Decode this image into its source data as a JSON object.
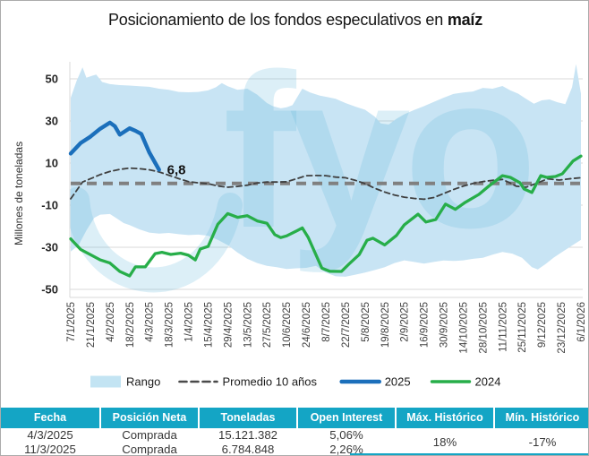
{
  "title": {
    "prefix": "Posicionamiento de los fondos especulativos en ",
    "bold": "maíz"
  },
  "watermark": {
    "text": "fyo",
    "color": "rgba(96,180,220,0.22)"
  },
  "chart_data": {
    "type": "line",
    "title": "Posicionamiento de los fondos especulativos en maíz",
    "ylabel": "Millones de toneladas",
    "ylim": [
      -50,
      50
    ],
    "yticks": [
      50,
      30,
      10,
      -10,
      -30,
      -50
    ],
    "grid": "horizontal",
    "legend_position": "bottom",
    "categories": [
      "7/1/2025",
      "21/1/2025",
      "4/2/2025",
      "18/2/2025",
      "4/3/2025",
      "18/3/2025",
      "1/4/2025",
      "15/4/2025",
      "29/4/2025",
      "13/5/2025",
      "27/5/2025",
      "10/6/2025",
      "24/6/2025",
      "8/7/2025",
      "22/7/2025",
      "5/8/2025",
      "19/8/2025",
      "2/9/2025",
      "16/9/2025",
      "30/9/2025",
      "14/10/2025",
      "28/10/2025",
      "11/11/2025",
      "25/11/2025",
      "9/12/2025",
      "23/12/2025",
      "6/1/2026"
    ],
    "annotation": {
      "text": "6,8",
      "tick": 4.5,
      "value": 6.8,
      "dx": 9,
      "dy": 5
    },
    "zero_line": {
      "value": 0.3,
      "color": "#808080"
    },
    "band": {
      "name": "Rango",
      "fill": "#C8E4F4",
      "upper": [
        [
          0,
          41
        ],
        [
          0.3,
          49
        ],
        [
          0.6,
          55.5
        ],
        [
          0.8,
          50.5
        ],
        [
          1.1,
          51.5
        ],
        [
          1.3,
          52
        ],
        [
          1.6,
          48.5
        ],
        [
          2,
          47.5
        ],
        [
          2.5,
          47
        ],
        [
          3,
          46.8
        ],
        [
          3.5,
          46.5
        ],
        [
          4,
          46.2
        ],
        [
          4.5,
          45.3
        ],
        [
          5,
          44.8
        ],
        [
          5.5,
          43.8
        ],
        [
          6,
          43.6
        ],
        [
          6.5,
          43.8
        ],
        [
          7,
          44.5
        ],
        [
          7.4,
          46
        ],
        [
          7.7,
          48
        ],
        [
          8,
          46.5
        ],
        [
          8.5,
          44.8
        ],
        [
          9,
          45.3
        ],
        [
          9.5,
          42.5
        ],
        [
          10,
          38.5
        ],
        [
          10.3,
          37
        ],
        [
          10.7,
          36
        ],
        [
          11,
          36.5
        ],
        [
          11.3,
          37.5
        ],
        [
          11.8,
          45.3
        ],
        [
          12.2,
          43.5
        ],
        [
          12.7,
          42
        ],
        [
          13,
          41.5
        ],
        [
          13.5,
          40.5
        ],
        [
          14,
          38.5
        ],
        [
          14.5,
          36.8
        ],
        [
          15,
          35.3
        ],
        [
          15.5,
          32
        ],
        [
          15.8,
          28.8
        ],
        [
          16.2,
          28.3
        ],
        [
          16.6,
          31
        ],
        [
          17,
          33.2
        ],
        [
          17.5,
          35.2
        ],
        [
          18,
          37
        ],
        [
          18.5,
          39
        ],
        [
          19,
          41
        ],
        [
          19.5,
          42.8
        ],
        [
          20,
          43.5
        ],
        [
          20.5,
          44
        ],
        [
          21,
          45.7
        ],
        [
          21.5,
          45.3
        ],
        [
          22,
          46.6
        ],
        [
          22.4,
          44.5
        ],
        [
          22.8,
          43
        ],
        [
          23.2,
          40.5
        ],
        [
          23.6,
          38.2
        ],
        [
          24,
          39.8
        ],
        [
          24.4,
          40.2
        ],
        [
          24.8,
          38.9
        ],
        [
          25.2,
          38
        ],
        [
          25.55,
          46
        ],
        [
          25.75,
          57
        ],
        [
          26,
          43
        ]
      ],
      "lower": [
        [
          0,
          -32
        ],
        [
          0.4,
          -29
        ],
        [
          0.8,
          -22
        ],
        [
          1.2,
          -16
        ],
        [
          1.5,
          -14.5
        ],
        [
          2,
          -14.2
        ],
        [
          2.3,
          -16
        ],
        [
          2.7,
          -18.5
        ],
        [
          3,
          -19.5
        ],
        [
          3.5,
          -21.5
        ],
        [
          4,
          -23
        ],
        [
          4.5,
          -23.5
        ],
        [
          5,
          -23.2
        ],
        [
          5.5,
          -23.8
        ],
        [
          6,
          -24.2
        ],
        [
          6.5,
          -24
        ],
        [
          7,
          -24.5
        ],
        [
          7.5,
          -26.5
        ],
        [
          8,
          -29
        ],
        [
          8.5,
          -32.5
        ],
        [
          9,
          -35.5
        ],
        [
          9.5,
          -37.5
        ],
        [
          10,
          -38.8
        ],
        [
          10.5,
          -39.5
        ],
        [
          11,
          -40.3
        ],
        [
          11.5,
          -40
        ],
        [
          12,
          -39.8
        ],
        [
          12.5,
          -38.8
        ],
        [
          13,
          -42
        ],
        [
          13.5,
          -43.8
        ],
        [
          14,
          -44
        ],
        [
          14.5,
          -43
        ],
        [
          15,
          -42
        ],
        [
          15.5,
          -40.8
        ],
        [
          16,
          -39.5
        ],
        [
          16.5,
          -37.5
        ],
        [
          17,
          -36.2
        ],
        [
          17.5,
          -37
        ],
        [
          18,
          -37.8
        ],
        [
          18.5,
          -37
        ],
        [
          19,
          -36.3
        ],
        [
          19.5,
          -36.5
        ],
        [
          20,
          -36.2
        ],
        [
          20.5,
          -35.5
        ],
        [
          21,
          -35
        ],
        [
          21.5,
          -33.5
        ],
        [
          22,
          -32.2
        ],
        [
          22.5,
          -33
        ],
        [
          23,
          -35
        ],
        [
          23.5,
          -39.5
        ],
        [
          23.8,
          -40.5
        ],
        [
          24.2,
          -38
        ],
        [
          24.6,
          -35
        ],
        [
          25,
          -32.5
        ],
        [
          25.5,
          -29.5
        ],
        [
          26,
          -26.5
        ]
      ]
    },
    "series": [
      {
        "name": "Promedio 10 años",
        "style": "dashed",
        "color": "#3f3f3f",
        "width": 1.8,
        "points": [
          [
            0,
            -7
          ],
          [
            0.3,
            -3
          ],
          [
            0.6,
            1
          ],
          [
            1,
            2.5
          ],
          [
            1.5,
            4.5
          ],
          [
            2,
            6
          ],
          [
            2.5,
            7
          ],
          [
            3,
            7.6
          ],
          [
            3.5,
            7.3
          ],
          [
            4,
            6.8
          ],
          [
            4.5,
            5.8
          ],
          [
            5,
            4.2
          ],
          [
            5.5,
            2.6
          ],
          [
            6,
            1.2
          ],
          [
            6.5,
            0.6
          ],
          [
            7,
            0.2
          ],
          [
            7.5,
            -0.9
          ],
          [
            8,
            -1.5
          ],
          [
            8.5,
            -1.1
          ],
          [
            9,
            -0.5
          ],
          [
            9.5,
            0.5
          ],
          [
            10,
            1
          ],
          [
            10.5,
            1
          ],
          [
            11,
            1.1
          ],
          [
            11.5,
            2.5
          ],
          [
            12,
            4
          ],
          [
            12.5,
            4.1
          ],
          [
            13,
            4
          ],
          [
            13.5,
            3.3
          ],
          [
            14,
            3
          ],
          [
            14.5,
            1.8
          ],
          [
            15,
            0.2
          ],
          [
            15.5,
            -2
          ],
          [
            16,
            -3.8
          ],
          [
            16.5,
            -5.2
          ],
          [
            17,
            -6.2
          ],
          [
            17.5,
            -6.8
          ],
          [
            18,
            -7.2
          ],
          [
            18.5,
            -6.4
          ],
          [
            19,
            -4.5
          ],
          [
            19.5,
            -2.6
          ],
          [
            20,
            -1
          ],
          [
            20.5,
            0.3
          ],
          [
            21,
            1.2
          ],
          [
            21.5,
            1.8
          ],
          [
            22,
            2.2
          ],
          [
            22.4,
            0.5
          ],
          [
            22.7,
            -1
          ],
          [
            23.2,
            -1.5
          ],
          [
            23.8,
            0.6
          ],
          [
            24.3,
            2.5
          ],
          [
            24.9,
            1.9
          ],
          [
            25.5,
            2.6
          ],
          [
            26,
            3
          ]
        ]
      },
      {
        "name": "2024",
        "style": "solid",
        "color": "#27ae49",
        "width": 3.3,
        "points": [
          [
            0,
            -26
          ],
          [
            0.5,
            -31
          ],
          [
            1,
            -33.5
          ],
          [
            1.5,
            -36
          ],
          [
            2,
            -37.5
          ],
          [
            2.5,
            -41.5
          ],
          [
            3,
            -43.6
          ],
          [
            3.3,
            -39.3
          ],
          [
            3.8,
            -39.3
          ],
          [
            4.3,
            -33
          ],
          [
            4.65,
            -32.4
          ],
          [
            5.1,
            -33.4
          ],
          [
            5.6,
            -32.8
          ],
          [
            6,
            -33.8
          ],
          [
            6.35,
            -36
          ],
          [
            6.6,
            -30.8
          ],
          [
            7,
            -29.6
          ],
          [
            7.5,
            -19
          ],
          [
            8,
            -14
          ],
          [
            8.5,
            -15.8
          ],
          [
            9,
            -15
          ],
          [
            9.5,
            -17.5
          ],
          [
            10,
            -18.6
          ],
          [
            10.4,
            -24
          ],
          [
            10.7,
            -25.4
          ],
          [
            11,
            -24.6
          ],
          [
            11.5,
            -22.3
          ],
          [
            11.8,
            -20.8
          ],
          [
            12.1,
            -25.3
          ],
          [
            12.8,
            -39.9
          ],
          [
            13.2,
            -41.4
          ],
          [
            13.8,
            -41.5
          ],
          [
            14.2,
            -37.8
          ],
          [
            14.7,
            -33.5
          ],
          [
            15.1,
            -26.7
          ],
          [
            15.4,
            -25.7
          ],
          [
            16,
            -28.9
          ],
          [
            16.6,
            -24.4
          ],
          [
            17,
            -19.3
          ],
          [
            17.7,
            -14.3
          ],
          [
            18.1,
            -18
          ],
          [
            18.6,
            -16.8
          ],
          [
            19.1,
            -9.5
          ],
          [
            19.6,
            -12
          ],
          [
            20.1,
            -8.7
          ],
          [
            20.8,
            -4.9
          ],
          [
            21.3,
            -1
          ],
          [
            22,
            4
          ],
          [
            22.4,
            3.2
          ],
          [
            22.9,
            0.6
          ],
          [
            23.1,
            -2.3
          ],
          [
            23.5,
            -4
          ],
          [
            23.95,
            4
          ],
          [
            24.25,
            3.2
          ],
          [
            24.7,
            3.6
          ],
          [
            25.05,
            4.9
          ],
          [
            25.6,
            11
          ],
          [
            26,
            13.3
          ]
        ]
      },
      {
        "name": "2025",
        "style": "solid",
        "color": "#1b6fbb",
        "width": 4.4,
        "points": [
          [
            0,
            14.5
          ],
          [
            0.5,
            19.5
          ],
          [
            1,
            22.5
          ],
          [
            1.5,
            26.3
          ],
          [
            2,
            29.2
          ],
          [
            2.25,
            27.5
          ],
          [
            2.5,
            23.5
          ],
          [
            3,
            26.5
          ],
          [
            3.3,
            25.3
          ],
          [
            3.6,
            23.8
          ],
          [
            4,
            15.1
          ],
          [
            4.5,
            6.8
          ]
        ]
      }
    ],
    "legend": [
      {
        "label": "Rango",
        "swatch": "band",
        "color": "#c3e4f3"
      },
      {
        "label": "Promedio 10 años",
        "swatch": "dash",
        "color": "#4a4a4a"
      },
      {
        "label": "2025",
        "swatch": "line",
        "color": "#1b6fbb"
      },
      {
        "label": "2024",
        "swatch": "line",
        "color": "#27ae49"
      }
    ]
  },
  "table": {
    "header_bg": "#14a5c5",
    "headers": [
      "Fecha",
      "Posición Neta",
      "Toneladas",
      "Open Interest",
      "Máx. Histórico",
      "Mín. Histórico"
    ],
    "rows": [
      [
        "4/3/2025",
        "Comprada",
        "15.121.382",
        "5,06%"
      ],
      [
        "11/3/2025",
        "Comprada",
        "6.784.848",
        "2,26%"
      ]
    ],
    "max_historico": "18%",
    "min_historico": "-17%"
  }
}
